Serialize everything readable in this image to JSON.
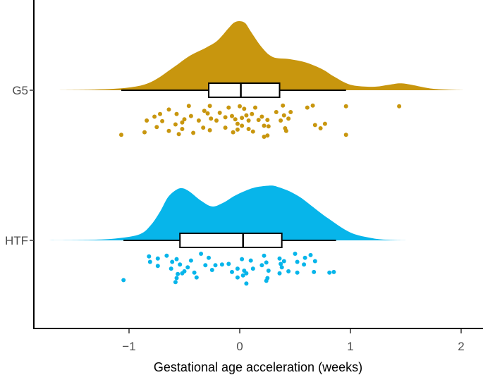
{
  "chart_data": {
    "type": "raincloud",
    "title": "",
    "xlabel": "Gestational age acceleration (weeks)",
    "ylabel": "",
    "xlim": [
      -1.75,
      2.18
    ],
    "x_ticks": [
      {
        "value": -1,
        "label": "−1"
      },
      {
        "value": 0,
        "label": "0"
      },
      {
        "value": 1,
        "label": "1"
      },
      {
        "value": 2,
        "label": "2"
      }
    ],
    "grid": false,
    "legend": "none",
    "series": [
      {
        "name": "G5",
        "color": "#C8960E",
        "density": {
          "x": [
            -1.64,
            -1.3,
            -1.0,
            -0.8,
            -0.6,
            -0.45,
            -0.3,
            -0.2,
            -0.1,
            -0.05,
            0.0,
            0.05,
            0.1,
            0.2,
            0.3,
            0.45,
            0.6,
            0.75,
            0.85,
            1.0,
            1.2,
            1.35,
            1.45,
            1.55,
            1.75,
            2.02
          ],
          "y": [
            0.0,
            0.01,
            0.04,
            0.12,
            0.33,
            0.5,
            0.62,
            0.72,
            0.9,
            0.98,
            1.0,
            0.97,
            0.85,
            0.62,
            0.48,
            0.45,
            0.4,
            0.3,
            0.2,
            0.08,
            0.05,
            0.08,
            0.1,
            0.08,
            0.02,
            0.0
          ]
        },
        "box": {
          "whisker_low": -1.07,
          "q1": -0.28,
          "median": 0.01,
          "q3": 0.36,
          "whisker_high": 0.96
        },
        "points": [
          {
            "x": -0.84,
            "j": 0.5
          },
          {
            "x": -0.77,
            "j": 0.38
          },
          {
            "x": -0.72,
            "j": 0.3
          },
          {
            "x": -0.7,
            "j": 0.52
          },
          {
            "x": -0.64,
            "j": 0.16
          },
          {
            "x": -0.58,
            "j": 0.62
          },
          {
            "x": -0.57,
            "j": 0.3
          },
          {
            "x": -0.52,
            "j": 0.56
          },
          {
            "x": -0.5,
            "j": 0.46
          },
          {
            "x": -0.46,
            "j": 0.05
          },
          {
            "x": -0.44,
            "j": 0.36
          },
          {
            "x": -0.37,
            "j": 0.5
          },
          {
            "x": -0.32,
            "j": 0.2
          },
          {
            "x": -0.29,
            "j": 0.28
          },
          {
            "x": -0.27,
            "j": 0.05
          },
          {
            "x": -0.26,
            "j": 0.44
          },
          {
            "x": -0.21,
            "j": 0.5
          },
          {
            "x": -0.18,
            "j": 0.26
          },
          {
            "x": -0.13,
            "j": 0.4
          },
          {
            "x": -0.1,
            "j": 0.1
          },
          {
            "x": -0.07,
            "j": 0.36
          },
          {
            "x": -0.04,
            "j": 0.46
          },
          {
            "x": -0.02,
            "j": 0.6
          },
          {
            "x": 0.0,
            "j": 0.06
          },
          {
            "x": 0.02,
            "j": 0.42
          },
          {
            "x": 0.04,
            "j": 0.14
          },
          {
            "x": 0.06,
            "j": 0.34
          },
          {
            "x": 0.08,
            "j": 0.5
          },
          {
            "x": 0.11,
            "j": 0.3
          },
          {
            "x": 0.14,
            "j": 0.1
          },
          {
            "x": 0.17,
            "j": 0.48
          },
          {
            "x": 0.2,
            "j": 0.38
          },
          {
            "x": 0.22,
            "j": 0.66
          },
          {
            "x": 0.25,
            "j": 0.48
          },
          {
            "x": 0.26,
            "j": 0.68
          },
          {
            "x": 0.33,
            "j": 0.24
          },
          {
            "x": 0.37,
            "j": 0.5
          },
          {
            "x": 0.39,
            "j": 0.04
          },
          {
            "x": 0.4,
            "j": 0.34
          },
          {
            "x": 0.44,
            "j": 0.44
          },
          {
            "x": 0.46,
            "j": 0.24
          },
          {
            "x": 0.61,
            "j": 0.1
          },
          {
            "x": 0.66,
            "j": 0.04
          },
          {
            "x": 0.68,
            "j": 0.64
          },
          {
            "x": 0.73,
            "j": 0.74
          },
          {
            "x": 0.77,
            "j": 0.6
          },
          {
            "x": 0.96,
            "j": 0.06
          },
          {
            "x": 0.96,
            "j": 0.94
          },
          {
            "x": 1.44,
            "j": 0.06
          },
          {
            "x": -1.07,
            "j": 0.94
          },
          {
            "x": -0.86,
            "j": 0.86
          },
          {
            "x": -0.75,
            "j": 0.7
          },
          {
            "x": -0.64,
            "j": 0.82
          },
          {
            "x": -0.55,
            "j": 0.92
          },
          {
            "x": -0.52,
            "j": 0.76
          },
          {
            "x": -0.42,
            "j": 0.88
          },
          {
            "x": -0.33,
            "j": 0.72
          },
          {
            "x": -0.27,
            "j": 0.8
          },
          {
            "x": -0.13,
            "j": 0.72
          },
          {
            "x": -0.06,
            "j": 0.86
          },
          {
            "x": -0.02,
            "j": 0.78
          },
          {
            "x": 0.02,
            "j": 0.66
          },
          {
            "x": 0.12,
            "j": 0.84
          },
          {
            "x": 0.08,
            "j": 0.76
          },
          {
            "x": 0.22,
            "j": 1.0
          },
          {
            "x": 0.25,
            "j": 0.96
          },
          {
            "x": 0.41,
            "j": 0.74
          },
          {
            "x": 0.42,
            "j": 0.82
          }
        ]
      },
      {
        "name": "HTF",
        "color": "#07B5EA",
        "density": {
          "x": [
            -1.72,
            -1.35,
            -1.1,
            -0.9,
            -0.8,
            -0.72,
            -0.65,
            -0.58,
            -0.52,
            -0.45,
            -0.35,
            -0.25,
            -0.15,
            -0.05,
            0.05,
            0.15,
            0.28,
            0.35,
            0.45,
            0.55,
            0.65,
            0.8,
            1.0,
            1.2,
            1.35,
            1.5
          ],
          "y": [
            0.0,
            0.01,
            0.04,
            0.12,
            0.3,
            0.55,
            0.82,
            0.96,
            1.0,
            0.93,
            0.76,
            0.65,
            0.72,
            0.85,
            0.95,
            1.02,
            1.05,
            1.02,
            0.94,
            0.82,
            0.66,
            0.42,
            0.15,
            0.04,
            0.01,
            0.0
          ]
        },
        "box": {
          "whisker_low": -1.05,
          "q1": -0.54,
          "median": 0.03,
          "q3": 0.38,
          "whisker_high": 0.87
        },
        "points": [
          {
            "x": -0.82,
            "j": 0.1
          },
          {
            "x": -0.81,
            "j": 0.26
          },
          {
            "x": -0.74,
            "j": 0.16
          },
          {
            "x": -0.74,
            "j": 0.38
          },
          {
            "x": -0.66,
            "j": 0.08
          },
          {
            "x": -0.62,
            "j": 0.46
          },
          {
            "x": -0.61,
            "j": 0.26
          },
          {
            "x": -0.57,
            "j": 0.18
          },
          {
            "x": -0.54,
            "j": 0.34
          },
          {
            "x": -0.5,
            "j": 0.54
          },
          {
            "x": -0.47,
            "j": 0.42
          },
          {
            "x": -0.44,
            "j": 0.22
          },
          {
            "x": -0.35,
            "j": 0.02
          },
          {
            "x": -0.31,
            "j": 0.36
          },
          {
            "x": -0.28,
            "j": 0.14
          },
          {
            "x": -0.22,
            "j": 0.36
          },
          {
            "x": -0.16,
            "j": 0.34
          },
          {
            "x": -0.1,
            "j": 0.32
          },
          {
            "x": -0.02,
            "j": 0.46
          },
          {
            "x": 0.02,
            "j": 0.18
          },
          {
            "x": 0.04,
            "j": 0.52
          },
          {
            "x": 0.1,
            "j": 0.22
          },
          {
            "x": 0.12,
            "j": 0.46
          },
          {
            "x": 0.2,
            "j": 0.36
          },
          {
            "x": 0.22,
            "j": 0.08
          },
          {
            "x": 0.24,
            "j": 0.28
          },
          {
            "x": 0.36,
            "j": 0.16
          },
          {
            "x": 0.37,
            "j": 0.32
          },
          {
            "x": 0.38,
            "j": 0.42
          },
          {
            "x": 0.4,
            "j": 0.24
          },
          {
            "x": 0.5,
            "j": 0.02
          },
          {
            "x": 0.52,
            "j": 0.26
          },
          {
            "x": 0.58,
            "j": 0.34
          },
          {
            "x": 0.59,
            "j": 0.14
          },
          {
            "x": 0.64,
            "j": 0.06
          },
          {
            "x": 0.68,
            "j": 0.24
          },
          {
            "x": -0.56,
            "j": 0.62
          },
          {
            "x": -0.57,
            "j": 0.74
          },
          {
            "x": -0.52,
            "j": 0.6
          },
          {
            "x": -0.58,
            "j": 0.86
          },
          {
            "x": -0.41,
            "j": 0.58
          },
          {
            "x": -0.39,
            "j": 0.72
          },
          {
            "x": -0.25,
            "j": 0.5
          },
          {
            "x": -0.07,
            "j": 0.56
          },
          {
            "x": 0.03,
            "j": 0.66
          },
          {
            "x": 0.06,
            "j": 0.6
          },
          {
            "x": -0.02,
            "j": 0.72
          },
          {
            "x": 0.26,
            "j": 0.52
          },
          {
            "x": 0.25,
            "j": 0.74
          },
          {
            "x": 0.24,
            "j": 0.82
          },
          {
            "x": 0.36,
            "j": 0.6
          },
          {
            "x": 0.44,
            "j": 0.54
          },
          {
            "x": 0.52,
            "j": 0.58
          },
          {
            "x": 0.67,
            "j": 0.56
          },
          {
            "x": 0.85,
            "j": 0.56
          },
          {
            "x": 0.81,
            "j": 0.58
          },
          {
            "x": 0.06,
            "j": 0.9
          },
          {
            "x": -1.05,
            "j": 0.8
          }
        ]
      }
    ]
  }
}
